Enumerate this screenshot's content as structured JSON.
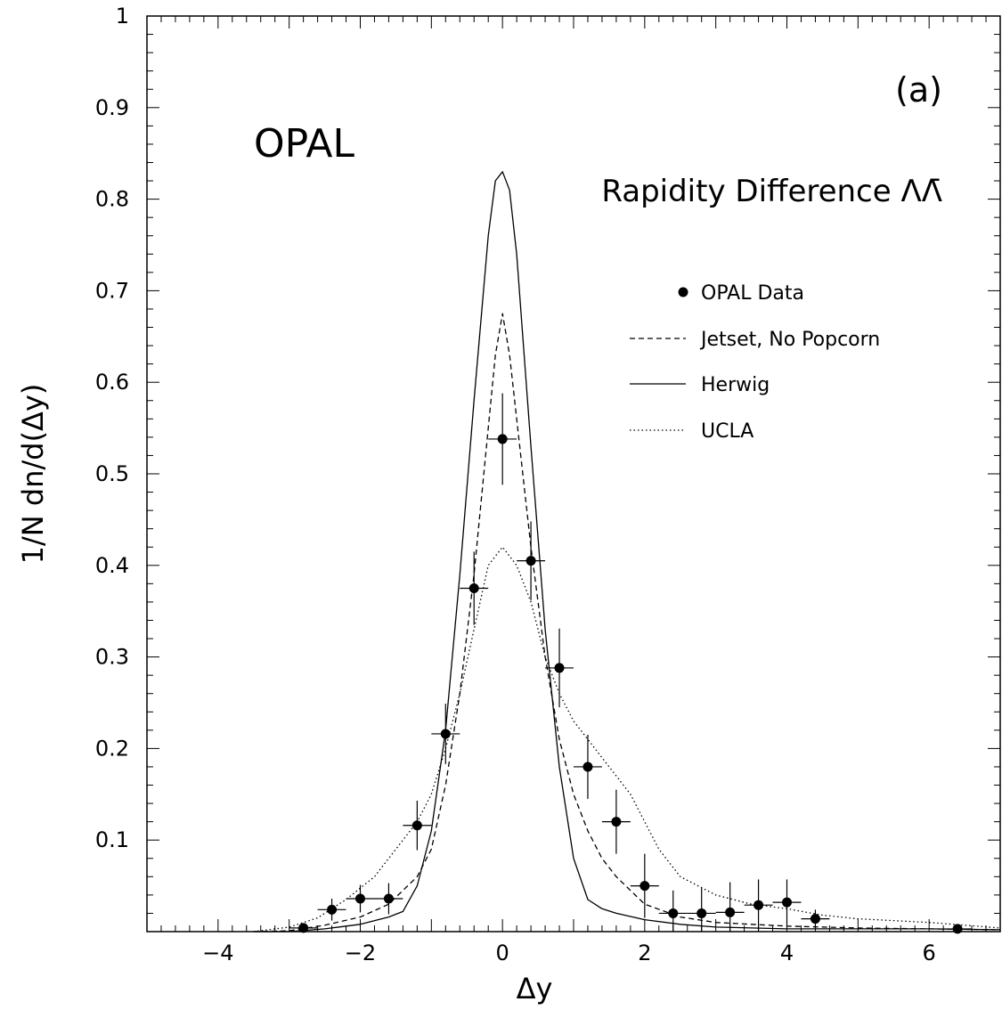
{
  "chart_data": {
    "type": "line",
    "title": "",
    "xlabel": "Δy",
    "ylabel": "1/N dn/d(Δy)",
    "xlim": [
      -5,
      7
    ],
    "ylim": [
      0,
      1
    ],
    "x_ticks": [
      -4,
      -2,
      0,
      2,
      4,
      6
    ],
    "x_tick_labels": [
      "−4",
      "−2",
      "0",
      "2",
      "4",
      "6"
    ],
    "y_ticks": [
      0.1,
      0.2,
      0.3,
      0.4,
      0.5,
      0.6,
      0.7,
      0.8,
      0.9,
      1
    ],
    "y_tick_labels": [
      "0.1",
      "0.2",
      "0.3",
      "0.4",
      "0.5",
      "0.6",
      "0.7",
      "0.8",
      "0.9",
      "1"
    ],
    "annotations": {
      "experiment": "OPAL",
      "panel": "(a)",
      "subtitle": "Rapidity Difference ΛΛ̄"
    },
    "legend": {
      "placement": "right",
      "entries": [
        {
          "label": "OPAL Data",
          "style": "marker"
        },
        {
          "label": "Jetset, No Popcorn",
          "style": "dashed"
        },
        {
          "label": "Herwig",
          "style": "solid"
        },
        {
          "label": "UCLA",
          "style": "dotted"
        }
      ]
    },
    "data_points": {
      "name": "OPAL Data",
      "x": [
        -2.8,
        -2.4,
        -2.0,
        -1.6,
        -1.2,
        -0.8,
        -0.4,
        0.0,
        0.4,
        0.8,
        1.2,
        1.6,
        2.0,
        2.4,
        2.8,
        3.2,
        3.6,
        4.0,
        4.4,
        6.4
      ],
      "y": [
        0.004,
        0.024,
        0.036,
        0.036,
        0.116,
        0.216,
        0.375,
        0.538,
        0.405,
        0.288,
        0.18,
        0.12,
        0.05,
        0.02,
        0.02,
        0.021,
        0.029,
        0.032,
        0.014,
        0.003
      ],
      "yerr": [
        0.003,
        0.012,
        0.015,
        0.017,
        0.027,
        0.033,
        0.04,
        0.05,
        0.043,
        0.043,
        0.035,
        0.035,
        0.035,
        0.025,
        0.028,
        0.033,
        0.028,
        0.025,
        0.01,
        0.003
      ],
      "xerr": 0.2
    },
    "series": [
      {
        "name": "Jetset, No Popcorn",
        "style": "dashed",
        "x": [
          -3.5,
          -3,
          -2.5,
          -2,
          -1.6,
          -1.2,
          -1.0,
          -0.8,
          -0.6,
          -0.4,
          -0.2,
          -0.1,
          0,
          0.1,
          0.2,
          0.4,
          0.6,
          0.8,
          1.0,
          1.2,
          1.4,
          1.6,
          2.0,
          2.5,
          3,
          3.5,
          4,
          5,
          6,
          7
        ],
        "y": [
          0.0,
          0.001,
          0.007,
          0.016,
          0.03,
          0.06,
          0.09,
          0.16,
          0.26,
          0.39,
          0.55,
          0.63,
          0.675,
          0.63,
          0.56,
          0.42,
          0.3,
          0.21,
          0.15,
          0.11,
          0.08,
          0.06,
          0.03,
          0.016,
          0.01,
          0.008,
          0.006,
          0.004,
          0.003,
          0.002
        ]
      },
      {
        "name": "Herwig",
        "style": "solid",
        "x": [
          -3.5,
          -3,
          -2.5,
          -2,
          -1.6,
          -1.4,
          -1.2,
          -1.0,
          -0.8,
          -0.6,
          -0.4,
          -0.2,
          -0.1,
          0,
          0.1,
          0.2,
          0.4,
          0.6,
          0.8,
          1.0,
          1.2,
          1.4,
          1.6,
          2.0,
          2.5,
          3,
          4,
          5,
          6,
          7
        ],
        "y": [
          0.0,
          0.0,
          0.003,
          0.008,
          0.016,
          0.022,
          0.05,
          0.11,
          0.22,
          0.39,
          0.58,
          0.76,
          0.82,
          0.83,
          0.81,
          0.74,
          0.53,
          0.33,
          0.18,
          0.08,
          0.035,
          0.025,
          0.02,
          0.013,
          0.008,
          0.005,
          0.003,
          0.003,
          0.003,
          0.002
        ]
      },
      {
        "name": "UCLA",
        "style": "dotted",
        "x": [
          -3.5,
          -3,
          -2.6,
          -2.2,
          -1.8,
          -1.5,
          -1.2,
          -1.0,
          -0.8,
          -0.6,
          -0.4,
          -0.2,
          0,
          0.2,
          0.4,
          0.6,
          0.8,
          1.0,
          1.2,
          1.4,
          1.6,
          1.8,
          2.0,
          2.2,
          2.5,
          3,
          3.5,
          4,
          4.5,
          5,
          6,
          7
        ],
        "y": [
          0.0,
          0.005,
          0.015,
          0.035,
          0.06,
          0.09,
          0.12,
          0.15,
          0.2,
          0.26,
          0.33,
          0.4,
          0.42,
          0.4,
          0.36,
          0.3,
          0.26,
          0.23,
          0.21,
          0.19,
          0.17,
          0.15,
          0.12,
          0.09,
          0.06,
          0.04,
          0.03,
          0.025,
          0.018,
          0.014,
          0.01,
          0.004
        ]
      }
    ]
  }
}
